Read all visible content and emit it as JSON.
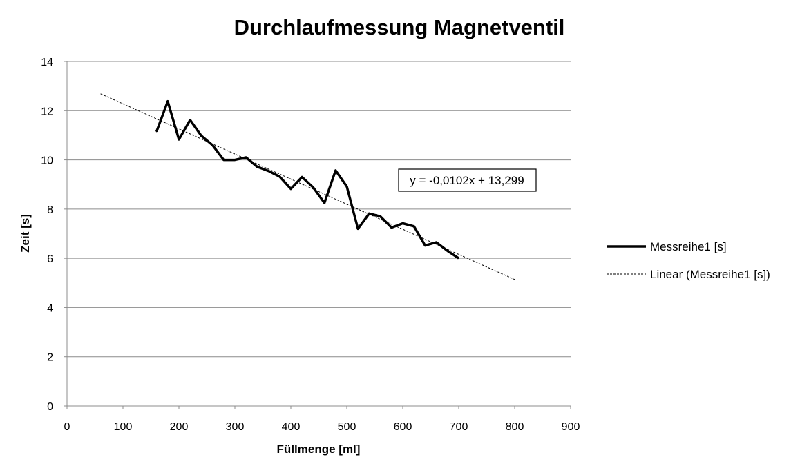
{
  "chart_data": {
    "type": "line",
    "title": "Durchlaufmessung Magnetventil",
    "xlabel": "Füllmenge [ml]",
    "ylabel": "Zeit [s]",
    "xlim": [
      0,
      900
    ],
    "ylim": [
      0,
      14
    ],
    "x_ticks": [
      "0",
      "100",
      "200",
      "300",
      "400",
      "500",
      "600",
      "700",
      "800",
      "900"
    ],
    "y_ticks": [
      "0",
      "2",
      "4",
      "6",
      "8",
      "10",
      "12",
      "14"
    ],
    "grid": "horizontal",
    "legend_position": "right",
    "series": [
      {
        "name": "Messreihe1 [s]",
        "color": "#000000",
        "x": [
          160,
          180,
          200,
          220,
          240,
          260,
          280,
          300,
          320,
          340,
          360,
          380,
          400,
          420,
          440,
          460,
          480,
          500,
          520,
          540,
          560,
          580,
          600,
          620,
          640,
          660,
          680,
          700
        ],
        "y": [
          11.15,
          12.38,
          10.83,
          11.62,
          10.98,
          10.6,
          10.0,
          10.0,
          10.1,
          9.72,
          9.55,
          9.32,
          8.82,
          9.3,
          8.88,
          8.25,
          9.57,
          8.92,
          7.2,
          7.82,
          7.7,
          7.25,
          7.42,
          7.3,
          6.52,
          6.65,
          6.3,
          6.0
        ]
      }
    ],
    "trendline": {
      "name": "Linear (Messreihe1 [s])",
      "type": "linear",
      "slope": -0.0102,
      "intercept": 13.299,
      "x_range": [
        60,
        800
      ],
      "equation_label": "y = -0,0102x + 13,299",
      "color": "#000000"
    }
  }
}
